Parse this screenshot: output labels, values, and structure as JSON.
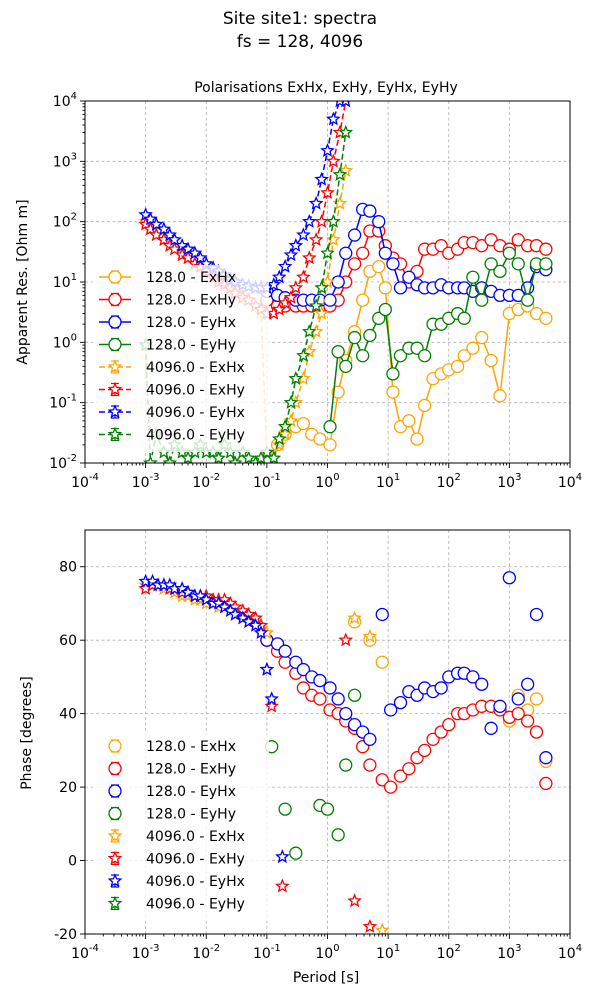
{
  "figure": {
    "title_line1": "Site site1: spectra",
    "title_line2": "fs = 128, 4096"
  },
  "colors": {
    "ExHx": "#ffa500",
    "ExHy": "#ff0000",
    "EyHx": "#0000ff",
    "EyHy": "#008000"
  },
  "chart_data": [
    {
      "type": "scatter",
      "title": "Polarisations ExHx, ExHy, EyHx, EyHy",
      "xlabel": "",
      "ylabel": "Apparent Res. [Ohm m]",
      "xscale": "log",
      "yscale": "log",
      "xlim": [
        0.0001,
        10000
      ],
      "ylim": [
        0.01,
        10000
      ],
      "xticks": [
        "10^-4",
        "10^-3",
        "10^-2",
        "10^-1",
        "10^0",
        "10^1",
        "10^2",
        "10^3",
        "10^4"
      ],
      "yticks": [
        "10^-2",
        "10^-1",
        "10^0",
        "10^1",
        "10^2",
        "10^3",
        "10^4"
      ],
      "grid": true,
      "legend_position": "lower-left",
      "legend": [
        "128.0 - ExHx",
        "128.0 - ExHy",
        "128.0 - EyHx",
        "128.0 - EyHy",
        "4096.0 - ExHx",
        "4096.0 - ExHy",
        "4096.0 - EyHx",
        "4096.0 - EyHy"
      ],
      "series": [
        {
          "name": "128.0 - ExHx",
          "pol": "ExHx",
          "marker": "circle",
          "x": [
            0.1,
            0.15,
            0.2,
            0.3,
            0.4,
            0.55,
            0.75,
            1.1,
            1.5,
            2.0,
            2.8,
            3.8,
            5,
            7,
            9,
            12,
            16,
            22,
            30,
            40,
            55,
            75,
            100,
            140,
            180,
            250,
            350,
            500,
            700,
            1000,
            1400,
            2000,
            2800,
            4000
          ],
          "y": [
            0.012,
            0.02,
            0.03,
            0.04,
            0.045,
            0.03,
            0.025,
            0.02,
            0.15,
            0.5,
            1.5,
            5,
            15,
            18,
            8,
            0.15,
            0.04,
            0.05,
            0.025,
            0.09,
            0.25,
            0.3,
            0.35,
            0.4,
            0.6,
            0.8,
            1.2,
            0.5,
            0.13,
            3,
            3.5,
            4,
            3,
            2.5
          ]
        },
        {
          "name": "128.0 - ExHy",
          "pol": "ExHy",
          "marker": "circle",
          "x": [
            0.1,
            0.15,
            0.2,
            0.3,
            0.4,
            0.55,
            0.75,
            1.1,
            1.5,
            2.0,
            2.8,
            3.8,
            5,
            7,
            9,
            12,
            16,
            22,
            30,
            40,
            55,
            75,
            100,
            140,
            180,
            250,
            350,
            500,
            700,
            1000,
            1400,
            2000,
            2800,
            4000
          ],
          "y": [
            5,
            4,
            4,
            4,
            4,
            4,
            4,
            4,
            5,
            10,
            20,
            30,
            70,
            70,
            40,
            25,
            20,
            10,
            15,
            35,
            35,
            40,
            30,
            35,
            45,
            45,
            40,
            50,
            40,
            35,
            50,
            40,
            40,
            35
          ]
        },
        {
          "name": "128.0 - EyHx",
          "pol": "EyHx",
          "marker": "circle",
          "x": [
            0.1,
            0.15,
            0.2,
            0.3,
            0.4,
            0.55,
            0.75,
            1.1,
            1.5,
            2.0,
            2.8,
            3.8,
            5,
            7,
            9,
            12,
            16,
            22,
            30,
            40,
            55,
            75,
            100,
            140,
            180,
            250,
            350,
            500,
            700,
            1000,
            1400,
            2000,
            2800,
            4000
          ],
          "y": [
            7,
            6,
            5.5,
            5,
            5,
            5,
            5,
            5,
            10,
            30,
            60,
            160,
            150,
            100,
            30,
            20,
            8,
            12,
            9,
            8,
            8,
            9,
            8,
            8,
            8,
            7,
            8,
            7,
            6,
            6,
            6,
            8,
            18,
            16
          ]
        },
        {
          "name": "128.0 - EyHy",
          "pol": "EyHy",
          "marker": "circle",
          "x": [
            1.1,
            1.5,
            2.0,
            2.8,
            3.8,
            5,
            7,
            9,
            12,
            16,
            22,
            30,
            40,
            55,
            75,
            100,
            140,
            180,
            250,
            350,
            500,
            700,
            1000,
            1400,
            2000,
            2800,
            4000
          ],
          "y": [
            0.04,
            0.7,
            0.4,
            1.2,
            0.6,
            1.3,
            2.5,
            3.5,
            0.3,
            0.6,
            0.8,
            0.8,
            0.6,
            2,
            2,
            2.5,
            3,
            2.5,
            12,
            5,
            20,
            15,
            30,
            20,
            5,
            20,
            20
          ]
        },
        {
          "name": "4096.0 - ExHx",
          "pol": "ExHx",
          "marker": "star",
          "x": [
            0.001,
            0.0012,
            0.0015,
            0.002,
            0.0025,
            0.003,
            0.004,
            0.005,
            0.0065,
            0.008,
            0.01,
            0.013,
            0.016,
            0.02,
            0.025,
            0.03,
            0.04,
            0.05,
            0.065,
            0.08,
            0.1,
            0.13,
            0.16,
            0.2,
            0.25,
            0.3,
            0.4,
            0.5,
            0.65,
            0.8,
            1.0,
            1.25,
            1.6,
            2.0
          ],
          "y": [
            100,
            80,
            60,
            50,
            40,
            35,
            30,
            25,
            20,
            18,
            15,
            12,
            11,
            10,
            8,
            7,
            6,
            5,
            4,
            3,
            0.015,
            0.012,
            0.02,
            0.03,
            0.05,
            0.1,
            0.25,
            0.7,
            1.5,
            3,
            10,
            50,
            200,
            700
          ]
        },
        {
          "name": "4096.0 - ExHy",
          "pol": "ExHy",
          "marker": "star",
          "x": [
            0.001,
            0.0012,
            0.0015,
            0.002,
            0.0025,
            0.003,
            0.004,
            0.005,
            0.0065,
            0.008,
            0.01,
            0.013,
            0.016,
            0.02,
            0.025,
            0.03,
            0.04,
            0.05,
            0.065,
            0.08,
            0.1,
            0.13,
            0.16,
            0.2,
            0.25,
            0.3,
            0.4,
            0.5,
            0.65,
            0.8,
            1.0,
            1.25,
            1.6,
            2.0
          ],
          "y": [
            90,
            75,
            60,
            50,
            40,
            35,
            28,
            25,
            20,
            18,
            15,
            12,
            10,
            9,
            8,
            6.5,
            5.5,
            5,
            4,
            3.5,
            3,
            3,
            3.5,
            4.5,
            5.5,
            8,
            12,
            25,
            50,
            100,
            300,
            1000,
            3000,
            10000
          ]
        },
        {
          "name": "4096.0 - EyHx",
          "pol": "EyHx",
          "marker": "star",
          "x": [
            0.001,
            0.0012,
            0.0015,
            0.002,
            0.0025,
            0.003,
            0.004,
            0.005,
            0.0065,
            0.008,
            0.01,
            0.013,
            0.016,
            0.02,
            0.025,
            0.03,
            0.04,
            0.05,
            0.065,
            0.08,
            0.1,
            0.13,
            0.16,
            0.2,
            0.25,
            0.3,
            0.4,
            0.5,
            0.65,
            0.8,
            1.0,
            1.25,
            1.6,
            2.0
          ],
          "y": [
            130,
            110,
            90,
            75,
            60,
            50,
            40,
            35,
            30,
            25,
            20,
            17,
            15,
            13,
            11,
            10,
            9,
            8.5,
            8,
            8,
            8,
            9,
            12,
            18,
            28,
            40,
            60,
            100,
            200,
            500,
            1500,
            5000,
            10000,
            10000
          ]
        },
        {
          "name": "4096.0 - EyHy",
          "pol": "EyHy",
          "marker": "star",
          "x": [
            0.001,
            0.0012,
            0.0015,
            0.002,
            0.0025,
            0.003,
            0.004,
            0.005,
            0.0065,
            0.008,
            0.01,
            0.013,
            0.016,
            0.02,
            0.025,
            0.03,
            0.04,
            0.05,
            0.065,
            0.08,
            0.1,
            0.13,
            0.16,
            0.2,
            0.25,
            0.3,
            0.4,
            0.5,
            0.65,
            0.8,
            1.0,
            1.25,
            1.6,
            2.0
          ],
          "y": [
            0.9,
            0.01,
            0.03,
            0.015,
            0.01,
            0.02,
            0.015,
            0.012,
            0.015,
            0.02,
            0.015,
            0.015,
            0.012,
            0.02,
            0.015,
            0.01,
            0.015,
            0.012,
            0.01,
            0.012,
            0.015,
            0.012,
            0.025,
            0.04,
            0.1,
            0.25,
            0.6,
            1.5,
            4,
            8,
            30,
            100,
            600,
            3000
          ]
        }
      ]
    },
    {
      "type": "scatter",
      "title": "",
      "xlabel": "Period [s]",
      "ylabel": "Phase [degrees]",
      "xscale": "log",
      "yscale": "linear",
      "xlim": [
        0.0001,
        10000
      ],
      "ylim": [
        -20,
        90
      ],
      "xticks": [
        "10^-4",
        "10^-3",
        "10^-2",
        "10^-1",
        "10^0",
        "10^1",
        "10^2",
        "10^3",
        "10^4"
      ],
      "yticks": [
        -20,
        0,
        20,
        40,
        60,
        80
      ],
      "grid": true,
      "legend_position": "lower-left",
      "legend": [
        "128.0 - ExHx",
        "128.0 - ExHy",
        "128.0 - EyHx",
        "128.0 - EyHy",
        "4096.0 - ExHx",
        "4096.0 - ExHy",
        "4096.0 - EyHx",
        "4096.0 - EyHy"
      ],
      "series": [
        {
          "name": "128.0 - ExHx",
          "pol": "ExHx",
          "marker": "circle",
          "x": [
            2.8,
            5,
            8,
            1000,
            1400,
            2000,
            2800,
            4000
          ],
          "y": [
            65,
            60,
            54,
            38,
            45,
            41,
            44,
            27
          ]
        },
        {
          "name": "128.0 - ExHy",
          "pol": "ExHy",
          "marker": "circle",
          "x": [
            0.1,
            0.15,
            0.2,
            0.3,
            0.4,
            0.55,
            0.75,
            1.1,
            1.5,
            2.0,
            2.8,
            3.8,
            5,
            8,
            11,
            16,
            22,
            30,
            40,
            55,
            75,
            100,
            140,
            180,
            250,
            350,
            500,
            700,
            1000,
            1400,
            2000,
            2800,
            4000
          ],
          "y": [
            60,
            57,
            54,
            51,
            47,
            45,
            44,
            41,
            40,
            38,
            36,
            31,
            26,
            22,
            20,
            23,
            25,
            28,
            30,
            33,
            35,
            37,
            40,
            40,
            41,
            42,
            42,
            41,
            39,
            40,
            38,
            35,
            21
          ]
        },
        {
          "name": "128.0 - EyHx",
          "pol": "EyHx",
          "marker": "circle",
          "x": [
            0.1,
            0.15,
            0.2,
            0.3,
            0.4,
            0.55,
            0.75,
            1.1,
            1.5,
            2.0,
            2.8,
            3.8,
            5,
            8,
            11,
            16,
            22,
            30,
            40,
            55,
            75,
            100,
            140,
            180,
            250,
            350,
            500,
            700,
            1000,
            1400,
            2000,
            2800,
            4000
          ],
          "y": [
            60,
            59,
            57,
            54,
            52,
            50,
            49,
            47,
            44,
            40,
            37,
            35,
            33,
            67,
            41,
            43,
            46,
            45,
            47,
            46,
            47,
            50,
            51,
            51,
            50,
            48,
            36,
            42,
            77,
            44,
            48,
            67,
            28
          ]
        },
        {
          "name": "128.0 - EyHy",
          "pol": "EyHy",
          "marker": "circle",
          "x": [
            0.12,
            0.2,
            0.3,
            0.75,
            1.0,
            1.5,
            2.0,
            2.8
          ],
          "y": [
            31,
            14,
            2,
            15,
            14,
            7,
            26,
            45
          ]
        },
        {
          "name": "4096.0 - ExHx",
          "pol": "ExHx",
          "marker": "star",
          "x": [
            0.001,
            0.0013,
            0.0016,
            0.002,
            0.0025,
            0.003,
            0.004,
            0.005,
            0.0065,
            0.008,
            0.01,
            0.013,
            0.016,
            0.02,
            0.025,
            0.03,
            0.04,
            0.05,
            0.065,
            0.08,
            0.1,
            2.8,
            5,
            8
          ],
          "y": [
            75,
            75,
            75,
            74,
            74,
            73,
            72,
            72,
            71,
            71,
            70,
            70,
            69,
            69,
            68,
            67,
            66,
            65,
            64,
            63,
            62,
            66,
            61,
            -19
          ]
        },
        {
          "name": "4096.0 - ExHy",
          "pol": "ExHy",
          "marker": "star",
          "x": [
            0.001,
            0.0013,
            0.0016,
            0.002,
            0.0025,
            0.003,
            0.004,
            0.005,
            0.0065,
            0.008,
            0.01,
            0.013,
            0.016,
            0.02,
            0.025,
            0.03,
            0.04,
            0.05,
            0.065,
            0.08,
            0.1,
            0.12,
            0.18,
            2.0,
            2.8,
            5
          ],
          "y": [
            74,
            75,
            75,
            75,
            74,
            74,
            73,
            73,
            72,
            72,
            72,
            71,
            71,
            71,
            70,
            69,
            68,
            67,
            66,
            64,
            52,
            42,
            -7,
            60,
            -11,
            -18
          ]
        },
        {
          "name": "4096.0 - EyHx",
          "pol": "EyHx",
          "marker": "star",
          "x": [
            0.001,
            0.0013,
            0.0016,
            0.002,
            0.0025,
            0.003,
            0.004,
            0.005,
            0.0065,
            0.008,
            0.01,
            0.013,
            0.016,
            0.02,
            0.025,
            0.03,
            0.04,
            0.05,
            0.065,
            0.08,
            0.1,
            0.12,
            0.18
          ],
          "y": [
            76,
            76,
            75,
            75,
            75,
            74,
            74,
            73,
            72,
            72,
            71,
            70,
            70,
            69,
            68,
            67,
            66,
            65,
            64,
            62,
            52,
            44,
            1
          ]
        },
        {
          "name": "4096.0 - EyHy",
          "pol": "EyHy",
          "marker": "star",
          "x": [],
          "y": []
        }
      ]
    }
  ]
}
